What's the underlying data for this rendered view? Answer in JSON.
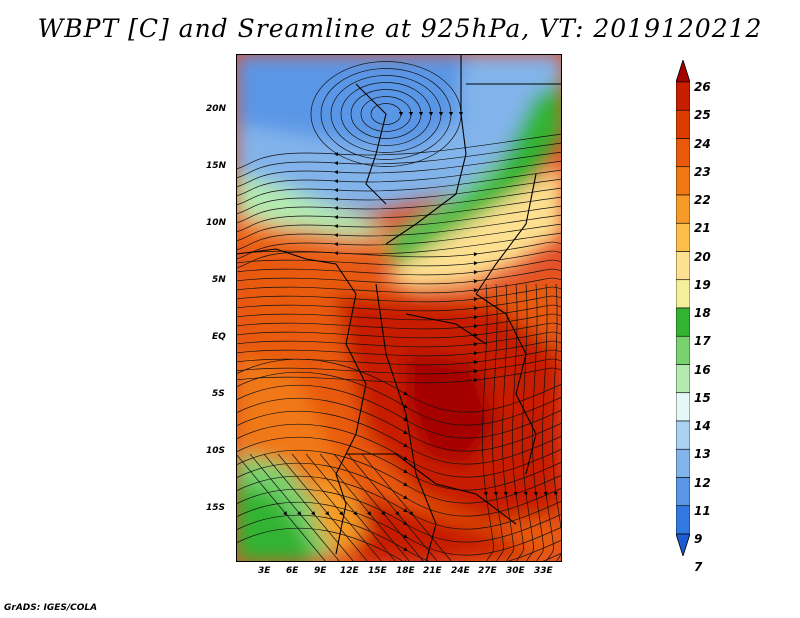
{
  "title": "WBPT [C] and Sreamline at 925hPa, VT: 2019120212",
  "credit": "GrADS: IGES/COLA",
  "y_axis": {
    "ticks": [
      {
        "label": "20N",
        "value": 20
      },
      {
        "label": "15N",
        "value": 15
      },
      {
        "label": "10N",
        "value": 10
      },
      {
        "label": "5N",
        "value": 5
      },
      {
        "label": "EQ",
        "value": 0
      },
      {
        "label": "5S",
        "value": -5
      },
      {
        "label": "10S",
        "value": -10
      },
      {
        "label": "15S",
        "value": -15
      }
    ],
    "range": [
      -20,
      24.5
    ]
  },
  "x_axis": {
    "ticks": [
      {
        "label": "3E",
        "value": 3
      },
      {
        "label": "6E",
        "value": 6
      },
      {
        "label": "9E",
        "value": 9
      },
      {
        "label": "12E",
        "value": 12
      },
      {
        "label": "15E",
        "value": 15
      },
      {
        "label": "18E",
        "value": 18
      },
      {
        "label": "21E",
        "value": 21
      },
      {
        "label": "24E",
        "value": 24
      },
      {
        "label": "27E",
        "value": 27
      },
      {
        "label": "30E",
        "value": 30
      },
      {
        "label": "33E",
        "value": 33
      }
    ],
    "range": [
      0.5,
      34.5
    ]
  },
  "colorbar": {
    "labels": [
      "26",
      "25",
      "24",
      "23",
      "22",
      "21",
      "20",
      "19",
      "18",
      "17",
      "16",
      "15",
      "14",
      "13",
      "12",
      "11",
      "9",
      "7"
    ],
    "colors": [
      "#a50000",
      "#c81e00",
      "#dc3c00",
      "#e85a0a",
      "#f07814",
      "#f59b28",
      "#fbbe4a",
      "#fde090",
      "#f2f09a",
      "#32b432",
      "#78d26e",
      "#b4eab0",
      "#e6f7f7",
      "#aad2f0",
      "#82b4eb",
      "#5a96e6",
      "#3278e1",
      "#1e5ad2"
    ]
  },
  "legend_colors": {
    "high": "#a50000",
    "mid": "#f07814",
    "cool_green": "#32b432",
    "cool_blue": "#5a96e6"
  },
  "streamlines": "black"
}
